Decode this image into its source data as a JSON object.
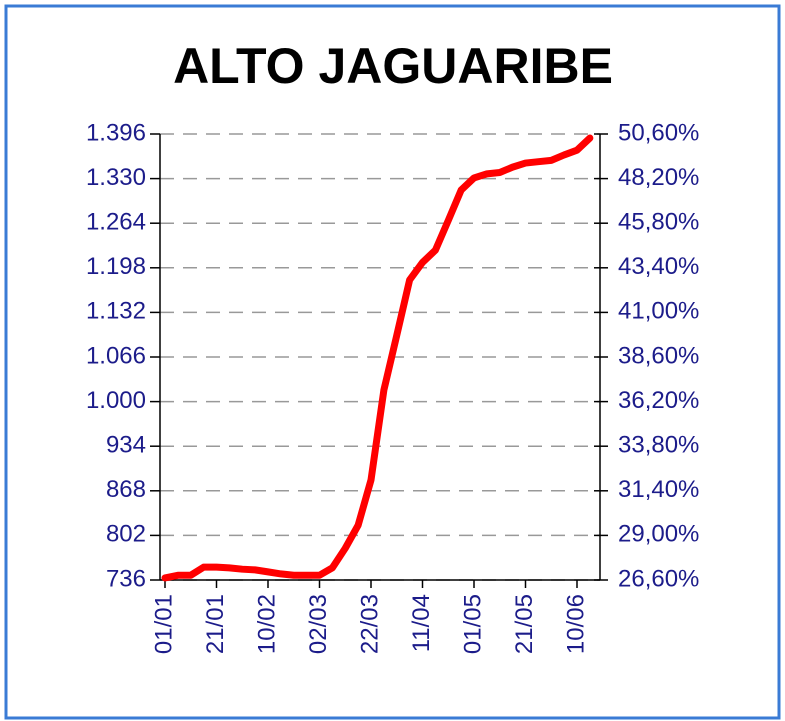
{
  "chart_data": {
    "type": "line",
    "title": "ALTO JAGUARIBE",
    "categories": [
      "01/01",
      null,
      null,
      null,
      "21/01",
      null,
      null,
      null,
      "10/02",
      null,
      null,
      null,
      "02/03",
      null,
      null,
      null,
      "22/03",
      null,
      null,
      null,
      "11/04",
      null,
      null,
      null,
      "01/05",
      null,
      null,
      null,
      "21/05",
      null,
      null,
      null,
      "10/06",
      null
    ],
    "series": [
      {
        "color": "#ff0000",
        "values": [
          739,
          743,
          743,
          755,
          755,
          754,
          752,
          751,
          748,
          745,
          743,
          743,
          743,
          754,
          783,
          817,
          884,
          1017,
          1098,
          1180,
          1206,
          1224,
          1268,
          1313,
          1331,
          1337,
          1339,
          1347,
          1353,
          1355,
          1357,
          1365,
          1372,
          1390
        ]
      }
    ],
    "ylim": [
      736,
      1396
    ],
    "yticks": [
      736,
      802,
      868,
      934,
      {
        "value": 1000,
        "label": "1.000"
      },
      {
        "value": 1066,
        "label": "1.066"
      },
      {
        "value": 1132,
        "label": "1.132"
      },
      {
        "value": 1198,
        "label": "1.198"
      },
      {
        "value": 1264,
        "label": "1.264"
      },
      {
        "value": 1330,
        "label": "1.330"
      },
      {
        "value": 1396,
        "label": "1.396"
      }
    ],
    "y2lim": [
      26.6,
      50.6
    ],
    "y2ticks": [
      {
        "value": 26.6,
        "label": "26,60%"
      },
      {
        "value": 29.0,
        "label": "29,00%"
      },
      {
        "value": 31.4,
        "label": "31,40%"
      },
      {
        "value": 33.8,
        "label": "33,80%"
      },
      {
        "value": 36.2,
        "label": "36,20%"
      },
      {
        "value": 38.6,
        "label": "38,60%"
      },
      {
        "value": 41.0,
        "label": "41,00%"
      },
      {
        "value": 43.4,
        "label": "43,40%"
      },
      {
        "value": 45.8,
        "label": "45,80%"
      },
      {
        "value": 48.2,
        "label": "48,20%"
      },
      {
        "value": 50.6,
        "label": "50,60%"
      }
    ],
    "grid": true
  }
}
